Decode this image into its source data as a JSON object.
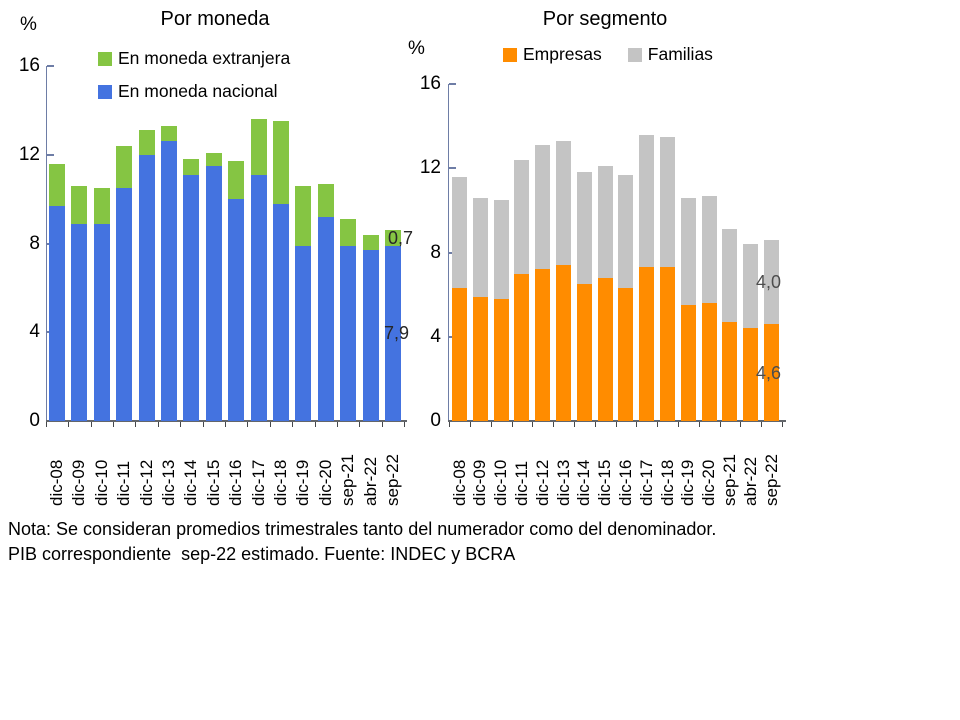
{
  "note": {
    "line1": "Nota: Se consideran promedios trimestrales tanto del numerador como del denominador.",
    "line2": "PIB correspondiente  sep-22 estimado. Fuente: INDEC y BCRA"
  },
  "colors": {
    "national_currency_blue": "#4473E0",
    "foreign_currency_green": "#85C543",
    "empresas_orange": "#FF8C00",
    "familias_gray": "#C4C4C4",
    "axis_blue_gray": "#6E7DA6",
    "value_label_dark": "#262626",
    "value_label_gray": "#4D4D4D"
  },
  "chart_data": [
    {
      "type": "bar",
      "stacked": true,
      "title": "Por moneda",
      "y_unit_label": "%",
      "ylim": [
        0,
        16
      ],
      "y_ticks": [
        0,
        4,
        8,
        12,
        16
      ],
      "grid": false,
      "legend_position": "top",
      "legend_series_order": [
        1,
        0
      ],
      "categories": [
        "dic-08",
        "dic-09",
        "dic-10",
        "dic-11",
        "dic-12",
        "dic-13",
        "dic-14",
        "dic-15",
        "dic-16",
        "dic-17",
        "dic-18",
        "dic-19",
        "dic-20",
        "sep-21",
        "abr-22",
        "sep-22"
      ],
      "series": [
        {
          "name": "En moneda nacional",
          "color": "#4473E0",
          "values": [
            9.7,
            8.9,
            8.9,
            10.5,
            12.0,
            12.6,
            11.1,
            11.5,
            10.0,
            11.1,
            9.8,
            7.9,
            9.2,
            7.9,
            7.7,
            7.9
          ]
        },
        {
          "name": "En moneda extranjera",
          "color": "#85C543",
          "values": [
            1.9,
            1.7,
            1.6,
            1.9,
            1.1,
            0.7,
            0.7,
            0.6,
            1.7,
            2.5,
            3.7,
            2.7,
            1.5,
            1.2,
            0.7,
            0.7
          ]
        }
      ],
      "annotations": [
        {
          "category": "sep-22",
          "series_index": 1,
          "text": "0,7"
        },
        {
          "category": "sep-22",
          "series_index": 0,
          "text": "7,9"
        }
      ]
    },
    {
      "type": "bar",
      "stacked": true,
      "title": "Por segmento",
      "y_unit_label": "%",
      "ylim": [
        0,
        16
      ],
      "y_ticks": [
        0,
        4,
        8,
        12,
        16
      ],
      "grid": false,
      "legend_position": "top",
      "legend_series_order": [
        0,
        1
      ],
      "categories": [
        "dic-08",
        "dic-09",
        "dic-10",
        "dic-11",
        "dic-12",
        "dic-13",
        "dic-14",
        "dic-15",
        "dic-16",
        "dic-17",
        "dic-18",
        "dic-19",
        "dic-20",
        "sep-21",
        "abr-22",
        "sep-22"
      ],
      "series": [
        {
          "name": "Empresas",
          "color": "#FF8C00",
          "values": [
            6.3,
            5.9,
            5.8,
            7.0,
            7.2,
            7.4,
            6.5,
            6.8,
            6.3,
            7.3,
            7.3,
            5.5,
            5.6,
            4.7,
            4.4,
            4.6
          ]
        },
        {
          "name": "Familias",
          "color": "#C4C4C4",
          "values": [
            5.3,
            4.7,
            4.7,
            5.4,
            5.9,
            5.9,
            5.3,
            5.3,
            5.4,
            6.3,
            6.2,
            5.1,
            5.1,
            4.4,
            4.0,
            4.0
          ]
        }
      ],
      "annotations": [
        {
          "category": "sep-22",
          "series_index": 1,
          "text": "4,0"
        },
        {
          "category": "sep-22",
          "series_index": 0,
          "text": "4,6"
        }
      ]
    }
  ]
}
